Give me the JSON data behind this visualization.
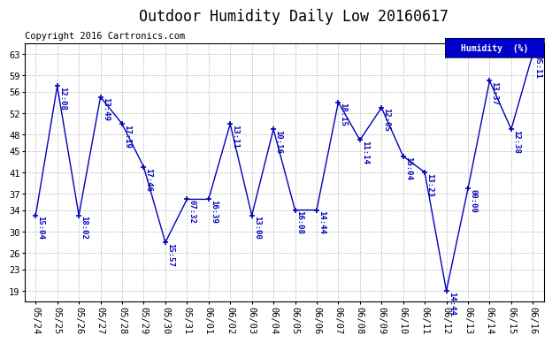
{
  "title": "Outdoor Humidity Daily Low 20160617",
  "copyright": "Copyright 2016 Cartronics.com",
  "legend_label": "Humidity  (%)",
  "x_labels": [
    "05/24",
    "05/25",
    "05/26",
    "05/27",
    "05/28",
    "05/29",
    "05/30",
    "05/31",
    "06/01",
    "06/02",
    "06/03",
    "06/04",
    "06/05",
    "06/06",
    "06/07",
    "06/08",
    "06/09",
    "06/10",
    "06/11",
    "06/12",
    "06/13",
    "06/14",
    "06/15",
    "06/16"
  ],
  "y_values": [
    33,
    57,
    33,
    55,
    50,
    42,
    28,
    36,
    36,
    50,
    33,
    49,
    34,
    34,
    54,
    47,
    53,
    44,
    41,
    19,
    38,
    58,
    49,
    63
  ],
  "point_labels": [
    "15:04",
    "12:08",
    "18:02",
    "13:49",
    "17:19",
    "17:46",
    "15:57",
    "07:32",
    "16:39",
    "13:11",
    "13:00",
    "10:16",
    "16:08",
    "14:44",
    "18:15",
    "11:14",
    "12:05",
    "16:04",
    "13:23",
    "14:44",
    "00:00",
    "13:37",
    "12:38",
    "05:11"
  ],
  "y_ticks": [
    19,
    23,
    26,
    30,
    34,
    37,
    41,
    45,
    48,
    52,
    56,
    59,
    63
  ],
  "y_min": 17,
  "y_max": 65,
  "line_color": "#0000bb",
  "marker_color": "#0000bb",
  "background_color": "#ffffff",
  "grid_color": "#bbbbbb",
  "title_fontsize": 12,
  "annot_fontsize": 6.5,
  "copyright_fontsize": 7.5,
  "tick_fontsize": 7.5,
  "legend_bg": "#0000cc",
  "legend_text_color": "#ffffff"
}
